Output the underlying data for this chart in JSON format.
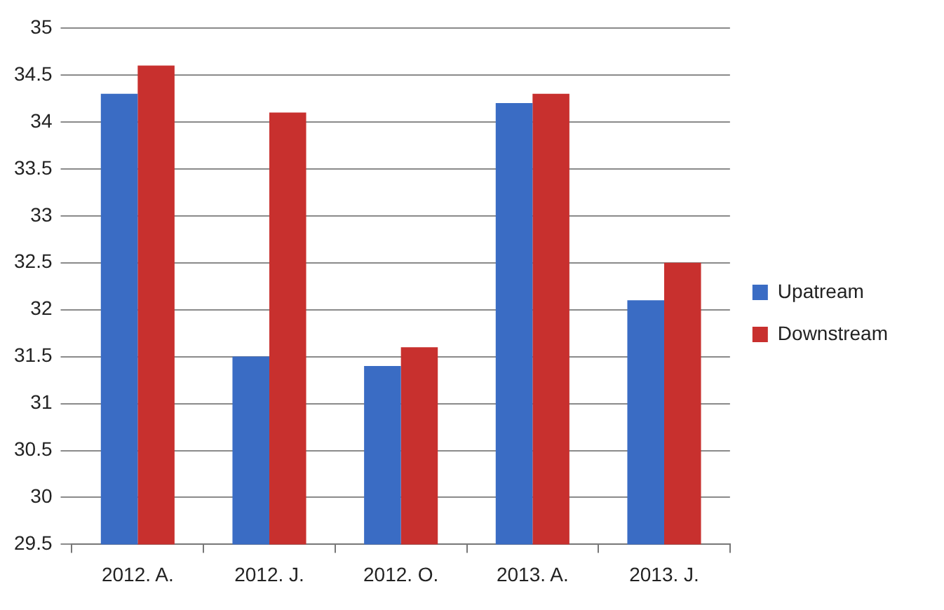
{
  "chart_data": {
    "type": "bar",
    "categories": [
      "2012. A.",
      "2012. J.",
      "2012. O.",
      "2013. A.",
      "2013. J."
    ],
    "series": [
      {
        "name": "Upatream",
        "color": "#3a6cc4",
        "values": [
          34.3,
          31.5,
          31.4,
          34.2,
          32.1
        ]
      },
      {
        "name": "Downstream",
        "color": "#c8302e",
        "values": [
          34.6,
          34.1,
          31.6,
          34.3,
          32.5
        ]
      }
    ],
    "ylim": [
      29.5,
      35
    ],
    "yticks": [
      29.5,
      30,
      30.5,
      31,
      31.5,
      32,
      32.5,
      33,
      33.5,
      34,
      34.5,
      35
    ],
    "grid": "y",
    "legend": "right"
  }
}
